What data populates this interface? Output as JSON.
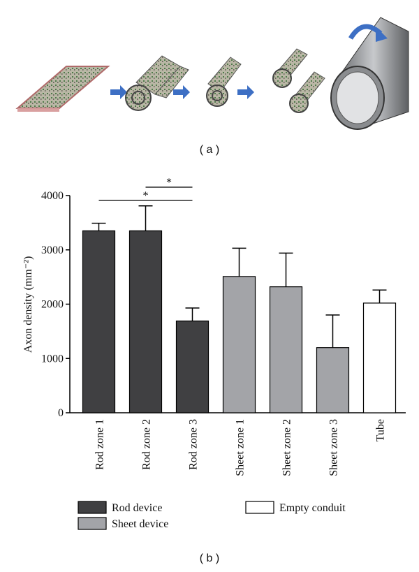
{
  "diagram": {
    "caption": "( a )"
  },
  "chart_data": {
    "type": "bar",
    "caption": "( b )",
    "y_label": "Axon density (mm⁻²)",
    "categories": [
      "Rod zone 1",
      "Rod zone 2",
      "Rod zone 3",
      "Sheet zone 1",
      "Sheet zone 2",
      "Sheet zone 3",
      "Tube"
    ],
    "series": [
      {
        "name": "Rod device",
        "color": "#404042",
        "values": [
          3350,
          3350,
          1690,
          null,
          null,
          null,
          null
        ],
        "errors": [
          140,
          460,
          240,
          null,
          null,
          null,
          null
        ]
      },
      {
        "name": "Sheet device",
        "color": "#a3a4a8",
        "values": [
          null,
          null,
          null,
          2510,
          2320,
          1200,
          null
        ],
        "errors": [
          null,
          null,
          null,
          520,
          620,
          600,
          null
        ]
      },
      {
        "name": "Empty conduit",
        "color": "#ffffff",
        "values": [
          null,
          null,
          null,
          null,
          null,
          null,
          2020
        ],
        "errors": [
          null,
          null,
          null,
          null,
          null,
          null,
          240
        ]
      }
    ],
    "ylim": [
      0,
      4000
    ],
    "yticks": [
      0,
      1000,
      2000,
      3000,
      4000
    ],
    "annotations": [
      {
        "text": "*",
        "span": [
          0,
          2
        ]
      },
      {
        "text": "*",
        "span": [
          1,
          2
        ]
      }
    ],
    "legend": "bottom"
  }
}
